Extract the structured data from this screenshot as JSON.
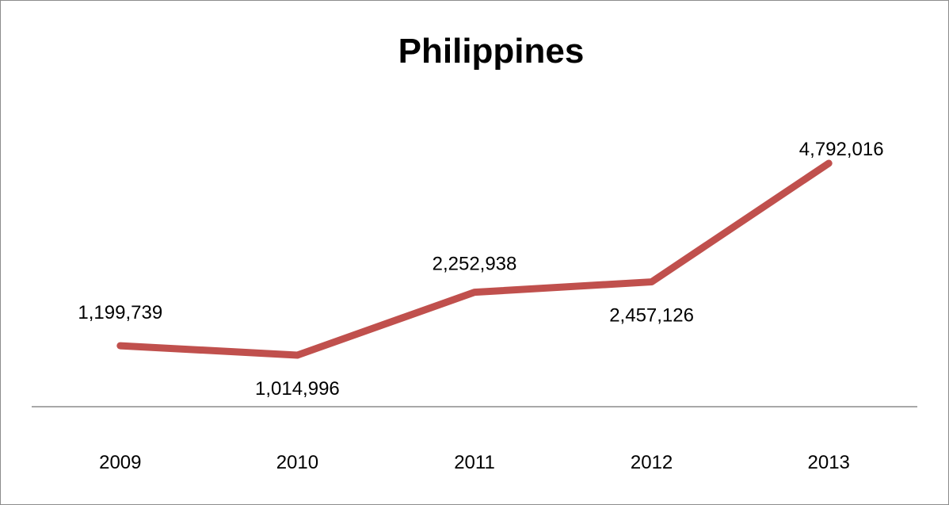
{
  "chart_data": {
    "type": "line",
    "title": "Philippines",
    "categories": [
      "2009",
      "2010",
      "2011",
      "2012",
      "2013"
    ],
    "series": [
      {
        "values": [
          1199739,
          1014996,
          2252938,
          2457126,
          4792016
        ],
        "labels": [
          "1,199,739",
          "1,014,996",
          "2,252,938",
          "2,457,126",
          "4,792,016"
        ],
        "color": "#c0504d"
      }
    ],
    "ylim": [
      0,
      5400000
    ],
    "grid": false,
    "legend": "none"
  }
}
